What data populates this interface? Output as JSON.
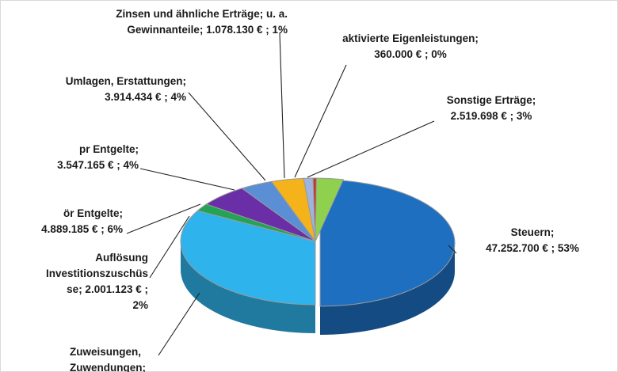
{
  "chart_data": {
    "type": "pie",
    "style": "3d-exploded",
    "title": "",
    "unit": "€",
    "slices": [
      {
        "id": "steuern",
        "lines": [
          "Steuern;",
          "47.252.700 € ; 53%"
        ],
        "value": 47252700,
        "percent": 53,
        "color": "#1f6fc1",
        "exploded": true
      },
      {
        "id": "zuweisungen",
        "lines": [
          "Zuweisungen,",
          "Zuwendungen;"
        ],
        "value": null,
        "percent": null,
        "color": "#2fb3ec"
      },
      {
        "id": "aufloesung",
        "lines": [
          "Auflösung",
          "Investitionszuschüs",
          "se;  2.001.123 € ;",
          "2%"
        ],
        "value": 2001123,
        "percent": 2,
        "color": "#22a454"
      },
      {
        "id": "oer_entgelte",
        "lines": [
          "ör Entgelte;",
          "4.889.185 € ; 6%"
        ],
        "value": 4889185,
        "percent": 6,
        "color": "#6a2ea6"
      },
      {
        "id": "pr_entgelte",
        "lines": [
          "pr Entgelte;",
          "3.547.165 € ; 4%"
        ],
        "value": 3547165,
        "percent": 4,
        "color": "#5a8fd6"
      },
      {
        "id": "umlagen",
        "lines": [
          "Umlagen, Erstattungen;",
          "3.914.434 € ; 4%"
        ],
        "value": 3914434,
        "percent": 4,
        "color": "#f4b21b"
      },
      {
        "id": "zinsen",
        "lines": [
          "Zinsen und ähnliche Erträge; u. a.",
          "Gewinnanteile;  1.078.130 € ; 1%"
        ],
        "value": 1078130,
        "percent": 1,
        "color": "#9eb4dc"
      },
      {
        "id": "aktivierte",
        "lines": [
          "aktivierte Eigenleistungen;",
          "360.000 € ; 0%"
        ],
        "value": 360000,
        "percent": 0,
        "color": "#c0392b"
      },
      {
        "id": "sonstige",
        "lines": [
          "Sonstige Erträge;",
          "2.519.698 € ; 3%"
        ],
        "value": 2519698,
        "percent": 3,
        "color": "#8fd14f"
      }
    ]
  }
}
